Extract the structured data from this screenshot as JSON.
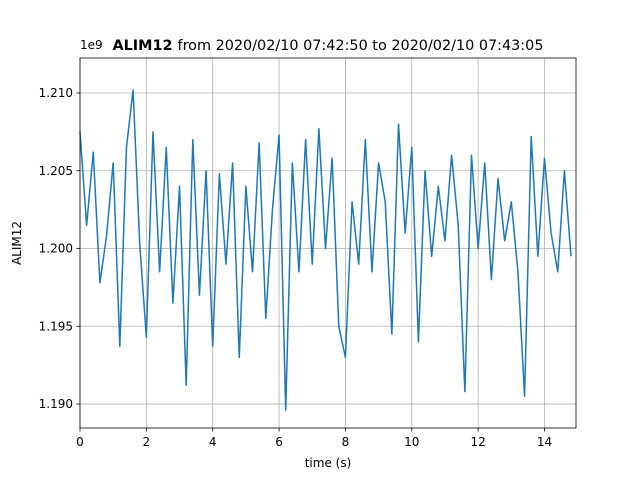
{
  "chart_data": {
    "type": "line",
    "title_name": "ALIM12",
    "title": "from 2020/02/10 07:42:50 to 2020/02/10 07:43:05",
    "x_label": "time (s)",
    "y_label": "ALIM12",
    "y_offset_label": "1e9",
    "x": [
      0,
      0.2,
      0.4,
      0.6,
      0.8,
      1.0,
      1.2,
      1.4,
      1.6,
      1.8,
      2.0,
      2.2,
      2.4,
      2.6,
      2.8,
      3.0,
      3.2,
      3.4,
      3.6,
      3.8,
      4.0,
      4.2,
      4.4,
      4.6,
      4.8,
      5.0,
      5.2,
      5.4,
      5.6,
      5.8,
      6.0,
      6.2,
      6.4,
      6.6,
      6.8,
      7.0,
      7.2,
      7.4,
      7.6,
      7.8,
      8.0,
      8.2,
      8.4,
      8.6,
      8.8,
      9.0,
      9.2,
      9.4,
      9.6,
      9.8,
      10.0,
      10.2,
      10.4,
      10.6,
      10.8,
      11.0,
      11.2,
      11.4,
      11.6,
      11.8,
      12.0,
      12.2,
      12.4,
      12.6,
      12.8,
      13.0,
      13.2,
      13.4,
      13.6,
      13.8,
      14.0,
      14.2,
      14.4,
      14.6,
      14.8
    ],
    "series": [
      {
        "name": "ALIM12",
        "color": "#1f77b4",
        "values": [
          1.2075,
          1.2015,
          1.2062,
          1.1978,
          1.2008,
          1.2055,
          1.1937,
          1.2065,
          1.2102,
          1.2003,
          1.1943,
          1.2075,
          1.1985,
          1.2065,
          1.1965,
          1.204,
          1.1912,
          1.207,
          1.197,
          1.205,
          1.1937,
          1.2048,
          1.199,
          1.2055,
          1.193,
          1.204,
          1.1985,
          1.2068,
          1.1955,
          1.2025,
          1.2073,
          1.1896,
          1.2055,
          1.1985,
          1.207,
          1.199,
          1.2077,
          1.2,
          1.2058,
          1.195,
          1.193,
          1.203,
          1.199,
          1.207,
          1.1985,
          1.2055,
          1.203,
          1.1945,
          1.208,
          1.201,
          1.2065,
          1.194,
          1.205,
          1.1995,
          1.204,
          1.2005,
          1.206,
          1.2015,
          1.1908,
          1.206,
          1.2,
          1.2055,
          1.198,
          1.2045,
          1.2005,
          1.203,
          1.1985,
          1.1905,
          1.2072,
          1.1995,
          1.2058,
          1.201,
          1.1985,
          1.205,
          1.1995
        ]
      }
    ],
    "xlim": [
      0,
      14.95
    ],
    "ylim": [
      1.18846,
      1.21225
    ],
    "xticks": [
      0,
      2,
      4,
      6,
      8,
      10,
      12,
      14
    ],
    "yticks": [
      {
        "value": 1.19,
        "label": "1.190"
      },
      {
        "value": 1.195,
        "label": "1.195"
      },
      {
        "value": 1.2,
        "label": "1.200"
      },
      {
        "value": 1.205,
        "label": "1.205"
      },
      {
        "value": 1.21,
        "label": "1.210"
      }
    ],
    "grid": true
  }
}
